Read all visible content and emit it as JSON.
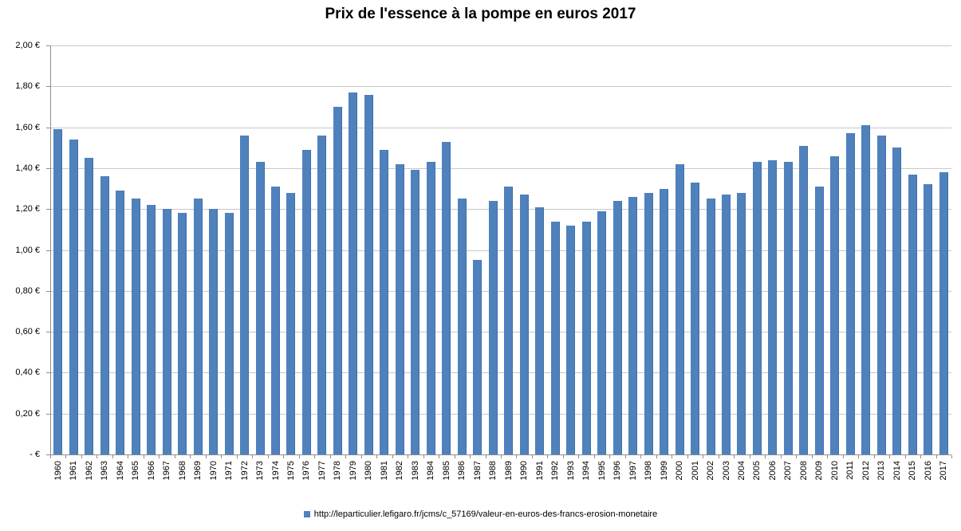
{
  "chart_data": {
    "type": "bar",
    "title": "Prix de l'essence à la pompe en euros 2017",
    "categories": [
      1960,
      1961,
      1962,
      1963,
      1964,
      1965,
      1966,
      1967,
      1968,
      1969,
      1970,
      1971,
      1972,
      1973,
      1974,
      1975,
      1976,
      1977,
      1978,
      1979,
      1980,
      1981,
      1982,
      1983,
      1984,
      1985,
      1986,
      1987,
      1988,
      1989,
      1990,
      1991,
      1992,
      1993,
      1994,
      1995,
      1996,
      1997,
      1998,
      1999,
      2000,
      2001,
      2002,
      2003,
      2004,
      2005,
      2006,
      2007,
      2008,
      2009,
      2010,
      2011,
      2012,
      2013,
      2014,
      2015,
      2016,
      2017
    ],
    "values": [
      1.59,
      1.54,
      1.45,
      1.36,
      1.29,
      1.25,
      1.22,
      1.2,
      1.18,
      1.25,
      1.2,
      1.18,
      1.56,
      1.43,
      1.31,
      1.28,
      1.49,
      1.56,
      1.7,
      1.77,
      1.76,
      1.49,
      1.42,
      1.39,
      1.43,
      1.53,
      1.25,
      0.95,
      1.24,
      1.31,
      1.27,
      1.21,
      1.14,
      1.12,
      1.14,
      1.19,
      1.24,
      1.26,
      1.28,
      1.3,
      1.42,
      1.33,
      1.25,
      1.27,
      1.28,
      1.43,
      1.44,
      1.43,
      1.51,
      1.31,
      1.46,
      1.57,
      1.61,
      1.56,
      1.5,
      1.37,
      1.32,
      1.38
    ],
    "xlabel": "",
    "ylabel": "",
    "ylim": [
      0,
      2.0
    ],
    "ytick_step": 0.2,
    "ytick_labels": [
      "-  €",
      "0,20 €",
      "0,40 €",
      "0,60 €",
      "0,80 €",
      "1,00 €",
      "1,20 €",
      "1,40 €",
      "1,60 €",
      "1,80 €",
      "2,00 €"
    ],
    "grid": true,
    "legend_position": "bottom",
    "legend": "http://leparticulier.lefigaro.fr/jcms/c_57169/valeur-en-euros-des-francs-erosion-monetaire",
    "colors": {
      "bar": "#4F81BD",
      "bar_edge": "#3E6FA8",
      "gridline": "#C8C8C8",
      "axis": "#8E8E8E",
      "text": "#000000"
    }
  }
}
